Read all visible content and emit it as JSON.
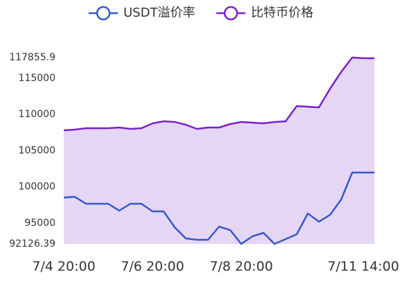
{
  "chart_data": {
    "type": "line",
    "categories": [
      "7/4 20:00",
      null,
      null,
      null,
      null,
      null,
      null,
      null,
      "7/6 20:00",
      null,
      null,
      null,
      null,
      null,
      null,
      null,
      "7/8 20:00",
      null,
      null,
      null,
      null,
      null,
      null,
      null,
      null,
      null,
      null,
      "7/11 14:00",
      null
    ],
    "series": [
      {
        "name": "USDT溢价率",
        "color": "#3557c8",
        "fill": false,
        "values": [
          98535,
          98630,
          97674,
          97674,
          97674,
          96718,
          97674,
          97674,
          96622,
          96622,
          94422,
          92892,
          92700,
          92700,
          94518,
          94040,
          92130,
          93179,
          93657,
          92130,
          92796,
          93466,
          96335,
          95187,
          96144,
          98248,
          101979,
          101979,
          101979
        ]
      },
      {
        "name": "比特币价格",
        "color": "#7a1fc9",
        "fill": true,
        "fill_color": "#e6d6f5",
        "values": [
          107813,
          107908,
          108100,
          108100,
          108100,
          108195,
          108004,
          108100,
          108769,
          109056,
          108961,
          108578,
          108004,
          108195,
          108195,
          108674,
          108961,
          108865,
          108769,
          108961,
          109056,
          111160,
          111065,
          110969,
          113552,
          115847,
          117856,
          117760,
          117760
        ]
      }
    ],
    "ylim": [
      92126.39,
      117855.9
    ],
    "yticks": [
      92126.39,
      95000,
      100000,
      105000,
      110000,
      115000,
      117855.9
    ],
    "grid": false,
    "legend": "top"
  }
}
